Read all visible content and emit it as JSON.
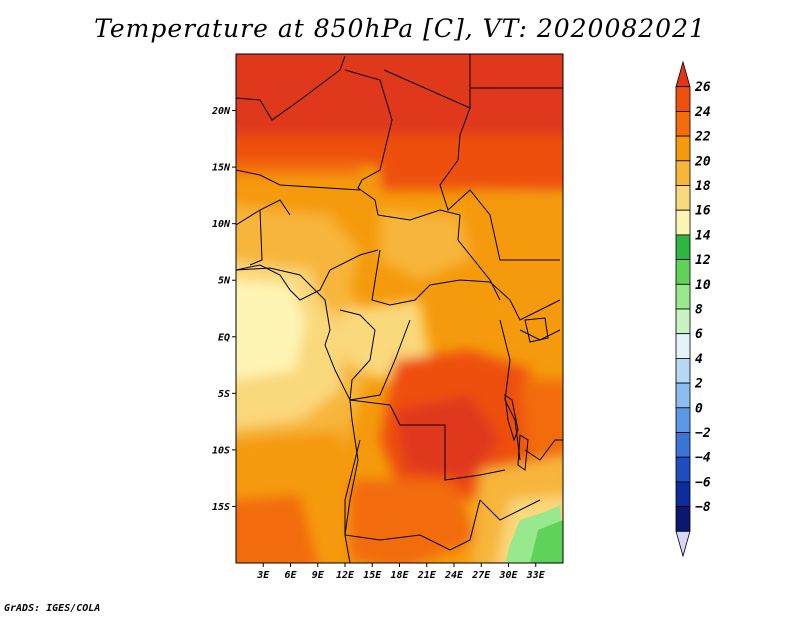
{
  "title": "Temperature at 850hPa [C], VT: 2020082021",
  "footer": "GrADS: IGES/COLA",
  "map": {
    "lon_range": [
      0,
      36
    ],
    "lat_range": [
      -20,
      25
    ],
    "x_ticks": [
      {
        "lon": 3,
        "label": "3E"
      },
      {
        "lon": 6,
        "label": "6E"
      },
      {
        "lon": 9,
        "label": "9E"
      },
      {
        "lon": 12,
        "label": "12E"
      },
      {
        "lon": 15,
        "label": "15E"
      },
      {
        "lon": 18,
        "label": "18E"
      },
      {
        "lon": 21,
        "label": "21E"
      },
      {
        "lon": 24,
        "label": "24E"
      },
      {
        "lon": 27,
        "label": "27E"
      },
      {
        "lon": 30,
        "label": "30E"
      },
      {
        "lon": 33,
        "label": "33E"
      }
    ],
    "y_ticks": [
      {
        "lat": 20,
        "label": "20N"
      },
      {
        "lat": 15,
        "label": "15N"
      },
      {
        "lat": 10,
        "label": "10N"
      },
      {
        "lat": 5,
        "label": "5N"
      },
      {
        "lat": 0,
        "label": "EQ"
      },
      {
        "lat": -5,
        "label": "5S"
      },
      {
        "lat": -10,
        "label": "10S"
      },
      {
        "lat": -15,
        "label": "15S"
      }
    ]
  },
  "colorbar": {
    "levels": [
      26,
      24,
      22,
      20,
      18,
      16,
      14,
      12,
      10,
      8,
      6,
      4,
      2,
      0,
      -2,
      -4,
      -6,
      -8
    ],
    "labels": [
      "26",
      "24",
      "22",
      "20",
      "18",
      "16",
      "14",
      "12",
      "10",
      "8",
      "6",
      "4",
      "2",
      "0",
      "−2",
      "−4",
      "−6",
      "−8"
    ],
    "colors_top_to_bottom": [
      "#e0371c",
      "#ee5010",
      "#f26c0c",
      "#f59a0c",
      "#f7b53a",
      "#fad87c",
      "#fef5b5",
      "#2fb542",
      "#5fd25a",
      "#98e88e",
      "#c8f4c0",
      "#e2f4fa",
      "#b5d9f5",
      "#8cbcf0",
      "#5b98e6",
      "#3a74d6",
      "#1f4cbe",
      "#0e2c9c",
      "#0a1870",
      "#d9d6f5"
    ]
  }
}
